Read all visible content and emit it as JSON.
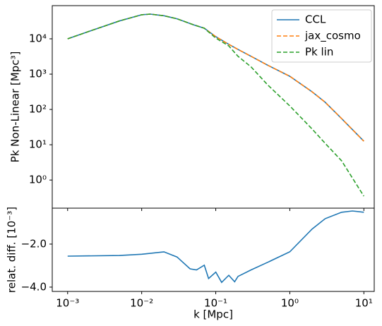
{
  "chart_data": [
    {
      "type": "line",
      "ylabel": "Pk Non-Linear [Mpc³]",
      "x": [
        0.001,
        0.002,
        0.005,
        0.01,
        0.013,
        0.02,
        0.03,
        0.05,
        0.07,
        0.1,
        0.15,
        0.2,
        0.3,
        0.5,
        1,
        2,
        3,
        5,
        10
      ],
      "series": [
        {
          "name": "CCL",
          "color": "#1f77b4",
          "linestyle": "solid",
          "values": [
            10000,
            16600,
            32000,
            48000,
            50000,
            45000,
            37000,
            25000,
            20000,
            11500,
            7000,
            5000,
            3200,
            1800,
            870,
            316,
            160,
            55,
            12.6
          ]
        },
        {
          "name": "jax_cosmo",
          "color": "#ff7f0e",
          "linestyle": "dashed",
          "values": [
            10000,
            16600,
            32000,
            48000,
            50000,
            45000,
            37000,
            25000,
            20000,
            11500,
            7000,
            5000,
            3200,
            1800,
            870,
            316,
            160,
            55,
            12.6
          ]
        },
        {
          "name": "Pk lin",
          "color": "#2ca02c",
          "linestyle": "dashed",
          "values": [
            10000,
            16600,
            32000,
            48000,
            50000,
            45000,
            37000,
            25000,
            20000,
            10500,
            6300,
            3200,
            1600,
            500,
            126,
            28,
            11,
            3.5,
            0.35
          ]
        }
      ],
      "xlog": true,
      "ylog": true,
      "xlim": [
        0.00062,
        13.8
      ],
      "ylim": [
        0.16,
        87000
      ],
      "yticks": [
        {
          "value": 1,
          "label": "10⁰"
        },
        {
          "value": 10,
          "label": "10¹"
        },
        {
          "value": 100,
          "label": "10²"
        },
        {
          "value": 1000,
          "label": "10³"
        },
        {
          "value": 10000,
          "label": "10⁴"
        }
      ],
      "legend": "upper right"
    },
    {
      "type": "line",
      "xlabel": "k [Mpc]",
      "ylabel": "relat. diff. [10⁻³]",
      "x": [
        0.001,
        0.005,
        0.01,
        0.02,
        0.03,
        0.045,
        0.055,
        0.07,
        0.08,
        0.1,
        0.12,
        0.15,
        0.18,
        0.2,
        0.3,
        0.5,
        1,
        2,
        3,
        5,
        7,
        10
      ],
      "series": [
        {
          "color": "#1f77b4",
          "linestyle": "solid",
          "values": [
            -2.56,
            -2.53,
            -2.47,
            -2.36,
            -2.6,
            -3.15,
            -3.2,
            -2.98,
            -3.6,
            -3.3,
            -3.78,
            -3.45,
            -3.75,
            -3.5,
            -3.2,
            -2.85,
            -2.36,
            -1.3,
            -0.82,
            -0.52,
            -0.46,
            -0.52
          ]
        }
      ],
      "xlog": true,
      "ylog": false,
      "xlim": [
        0.00062,
        13.8
      ],
      "ylim": [
        -4.2,
        -0.33
      ],
      "xticks": [
        {
          "value": 0.001,
          "label": "10⁻³"
        },
        {
          "value": 0.01,
          "label": "10⁻²"
        },
        {
          "value": 0.1,
          "label": "10⁻¹"
        },
        {
          "value": 1,
          "label": "10⁰"
        },
        {
          "value": 10,
          "label": "10¹"
        }
      ],
      "yticks": [
        {
          "value": -2,
          "label": "−2.0"
        },
        {
          "value": -4,
          "label": "−4.0"
        }
      ]
    }
  ]
}
